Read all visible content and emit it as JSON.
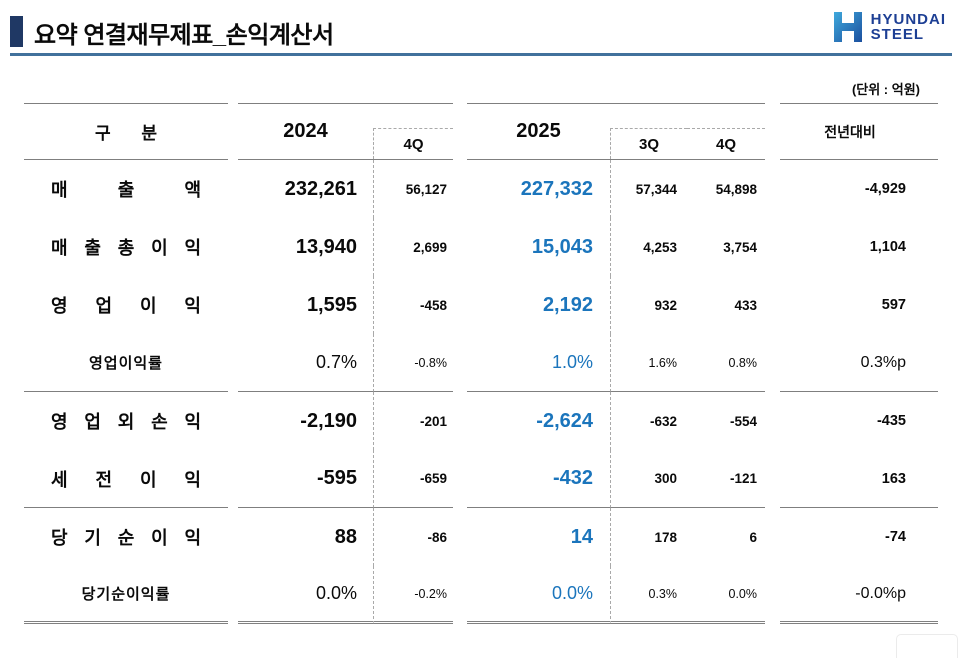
{
  "header": {
    "title": "요약 연결재무제표_손익계산서",
    "unit_note": "(단위 : 억원)",
    "logo": {
      "mark": "hyundai-h-mark",
      "line1": "HYUNDAI",
      "line2": "STEEL"
    }
  },
  "table": {
    "headers": {
      "category": "구 분",
      "year_2024": "2024",
      "q4_2024": "4Q",
      "year_2025": "2025",
      "q3_2025": "3Q",
      "q4_2025": "4Q",
      "yoy": "전년대비"
    },
    "rows": [
      {
        "label": "매출액",
        "y2024": "232,261",
        "q4_2024": "56,127",
        "y2025": "227,332",
        "q3_2025": "57,344",
        "q4_2025": "54,898",
        "yoy": "-4,929",
        "ratio": false,
        "group_end": false
      },
      {
        "label": "매출총이익",
        "y2024": "13,940",
        "q4_2024": "2,699",
        "y2025": "15,043",
        "q3_2025": "4,253",
        "q4_2025": "3,754",
        "yoy": "1,104",
        "ratio": false,
        "group_end": false
      },
      {
        "label": "영업이익",
        "y2024": "1,595",
        "q4_2024": "-458",
        "y2025": "2,192",
        "q3_2025": "932",
        "q4_2025": "433",
        "yoy": "597",
        "ratio": false,
        "group_end": false
      },
      {
        "label": "영업이익률",
        "y2024": "0.7%",
        "q4_2024": "-0.8%",
        "y2025": "1.0%",
        "q3_2025": "1.6%",
        "q4_2025": "0.8%",
        "yoy": "0.3%p",
        "ratio": true,
        "group_end": true
      },
      {
        "label": "영업외 손익",
        "y2024": "-2,190",
        "q4_2024": "-201",
        "y2025": "-2,624",
        "q3_2025": "-632",
        "q4_2025": "-554",
        "yoy": "-435",
        "ratio": false,
        "group_end": false
      },
      {
        "label": "세전이익",
        "y2024": "-595",
        "q4_2024": "-659",
        "y2025": "-432",
        "q3_2025": "300",
        "q4_2025": "-121",
        "yoy": "163",
        "ratio": false,
        "group_end": true
      },
      {
        "label": "당기순이익",
        "y2024": "88",
        "q4_2024": "-86",
        "y2025": "14",
        "q3_2025": "178",
        "q4_2025": "6",
        "yoy": "-74",
        "ratio": false,
        "group_end": false
      },
      {
        "label": "당기순이익률",
        "y2024": "0.0%",
        "q4_2024": "-0.2%",
        "y2025": "0.0%",
        "q3_2025": "0.3%",
        "q4_2025": "0.0%",
        "yoy": "-0.0%p",
        "ratio": true,
        "group_end": true
      }
    ]
  },
  "colors": {
    "accent_blue": "#1b75bc",
    "title_navy": "#1f3864",
    "underline_blue": "#41719c",
    "rule_gray": "#7f7f7f",
    "logo_blue": "#1d3f94"
  }
}
